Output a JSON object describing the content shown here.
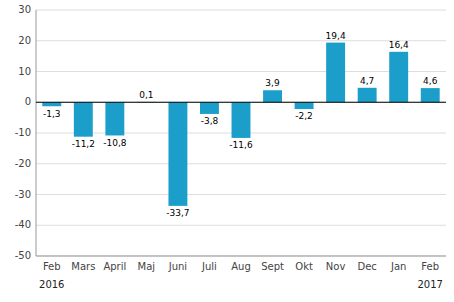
{
  "chart_data": {
    "type": "bar",
    "categories": [
      "Feb",
      "Mars",
      "April",
      "Maj",
      "Juni",
      "Juli",
      "Aug",
      "Sept",
      "Okt",
      "Nov",
      "Dec",
      "Jan",
      "Feb"
    ],
    "values": [
      -1.3,
      -11.2,
      -10.8,
      0.1,
      -33.7,
      -3.8,
      -11.6,
      3.9,
      -2.2,
      19.4,
      4.7,
      16.4,
      4.6
    ],
    "value_labels": [
      "-1,3",
      "-11,2",
      "-10,8",
      "0,1",
      "-33,7",
      "-3,8",
      "-11,6",
      "3,9",
      "-2,2",
      "19,4",
      "4,7",
      "16,4",
      "4,6"
    ],
    "data_labels": true,
    "color": "#1b9fca",
    "ylim": [
      -50,
      30
    ],
    "yticks": [
      -50,
      -40,
      -30,
      -20,
      -10,
      0,
      10,
      20,
      30
    ],
    "grid": true,
    "annotations": [
      {
        "text": "2016",
        "x": 0
      },
      {
        "text": "2017",
        "x": 12
      }
    ]
  }
}
